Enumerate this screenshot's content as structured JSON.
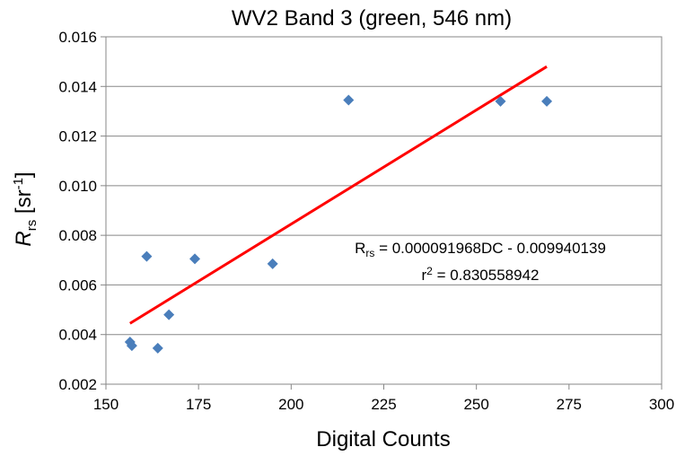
{
  "chart_data": {
    "type": "scatter",
    "title": "WV2 Band 3 (green, 546 nm)",
    "xlabel": "Digital Counts",
    "ylabel": {
      "main": "R",
      "sub": "rs",
      "unit_prefix": "[sr",
      "unit_sup": "-1",
      "unit_suffix": "]"
    },
    "xlim": [
      150,
      300
    ],
    "ylim": [
      0.002,
      0.016
    ],
    "xticks": [
      "150",
      "175",
      "200",
      "225",
      "250",
      "275",
      "300"
    ],
    "yticks": [
      "0.002",
      "0.004",
      "0.006",
      "0.008",
      "0.010",
      "0.012",
      "0.014",
      "0.016"
    ],
    "grid": "horizontal",
    "series": [
      {
        "marker": "diamond",
        "color": "#4a7ebb",
        "x": [
          156.5,
          157.0,
          161.0,
          164.0,
          167.0,
          174.0,
          195.0,
          215.5,
          256.5,
          269.0
        ],
        "y": [
          0.0037,
          0.00355,
          0.00715,
          0.00345,
          0.0048,
          0.00705,
          0.00685,
          0.01345,
          0.0134,
          0.0134
        ]
      }
    ],
    "trendline": {
      "color": "#ff0000",
      "x": [
        156.5,
        269.0
      ],
      "y": [
        0.00445,
        0.0148
      ]
    },
    "annotation": {
      "line1_prefix": "R",
      "line1_sub": "rs",
      "line1_rest": " = 0.000091968DC - 0.009940139",
      "line2_prefix": "r",
      "line2_sup": "2",
      "line2_rest": " = 0.830558942"
    }
  }
}
